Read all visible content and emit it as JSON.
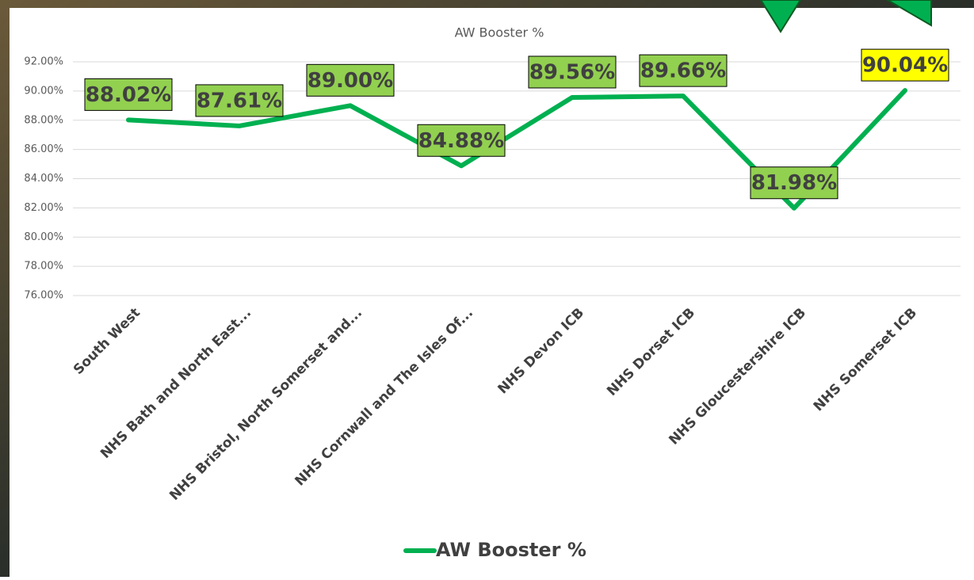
{
  "chart_data": {
    "type": "line",
    "title": "AW Booster %",
    "categories": [
      "South West",
      "NHS Bath and North East...",
      "NHS Bristol, North Somerset and...",
      "NHS Cornwall and The Isles Of...",
      "NHS Devon ICB",
      "NHS Dorset ICB",
      "NHS Gloucestershire ICB",
      "NHS Somerset ICB"
    ],
    "series": [
      {
        "name": "AW Booster %",
        "color": "#00b050",
        "values": [
          88.02,
          87.61,
          89.0,
          84.88,
          89.56,
          89.66,
          81.98,
          90.04
        ],
        "value_labels": [
          "88.02%",
          "87.61%",
          "89.00%",
          "84.88%",
          "89.56%",
          "89.66%",
          "81.98%",
          "90.04%"
        ],
        "label_colors": [
          "#92d050",
          "#92d050",
          "#92d050",
          "#92d050",
          "#92d050",
          "#92d050",
          "#92d050",
          "#ffff00"
        ]
      }
    ],
    "ylim": [
      76,
      92
    ],
    "yticks": [
      {
        "value": 76,
        "label": "76.00%"
      },
      {
        "value": 78,
        "label": "78.00%"
      },
      {
        "value": 80,
        "label": "80.00%"
      },
      {
        "value": 82,
        "label": "82.00%"
      },
      {
        "value": 84,
        "label": "84.00%"
      },
      {
        "value": 86,
        "label": "86.00%"
      },
      {
        "value": 88,
        "label": "88.00%"
      },
      {
        "value": 90,
        "label": "90.00%"
      },
      {
        "value": 92,
        "label": "92.00%"
      }
    ],
    "grid": true,
    "legend": "bottom"
  }
}
